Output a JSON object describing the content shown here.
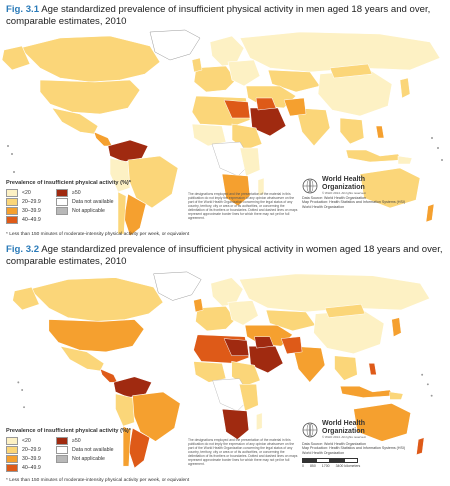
{
  "figures": [
    {
      "number": "Fig. 3.1",
      "title": "Age standardized prevalence of insufficient physical activity in men aged 18 years and over, comparable estimates, 2010"
    },
    {
      "number": "Fig. 3.2",
      "title": "Age standardized prevalence of insufficient physical activity in women aged 18 years and over, comparable estimates, 2010"
    }
  ],
  "legend": {
    "title": "Prevalence of insufficient physical activity (%)*",
    "items": [
      {
        "label": "<20",
        "color": "#fdf1c4"
      },
      {
        "label": "20–29.9",
        "color": "#fbd679"
      },
      {
        "label": "30–39.9",
        "color": "#f5a02f"
      },
      {
        "label": "40–49.9",
        "color": "#de5a18"
      },
      {
        "label": "≥50",
        "color": "#a02a10"
      },
      {
        "label": "Data not available",
        "color": "#ffffff"
      },
      {
        "label": "Not applicable",
        "color": "#b8b8b8"
      }
    ]
  },
  "footnote": "* Less than 150 minutes of moderate-intensity physical activity per week, or equivalent",
  "disclaimer": "The designations employed and the presentation of the material in this publication do not imply the expression of any opinion whatsoever on the part of the World Health Organization concerning the legal status of any country, territory, city or area or of its authorities, or concerning the delimitation of its frontiers or boundaries. Dotted and dashed lines on maps represent approximate border lines for which there may not yet be full agreement.",
  "who": {
    "name_line1": "World Health",
    "name_line2": "Organization",
    "copyright": "© WHO 2014. All rights reserved."
  },
  "source": {
    "line1": "Data Source: World Health Organization",
    "line2": "Map Production: Health Statistics and Information Systems (HSI)",
    "line3": "World Health Organization"
  },
  "scale": {
    "labels": [
      "0",
      "850",
      "1700",
      "3400 kilometers"
    ]
  }
}
